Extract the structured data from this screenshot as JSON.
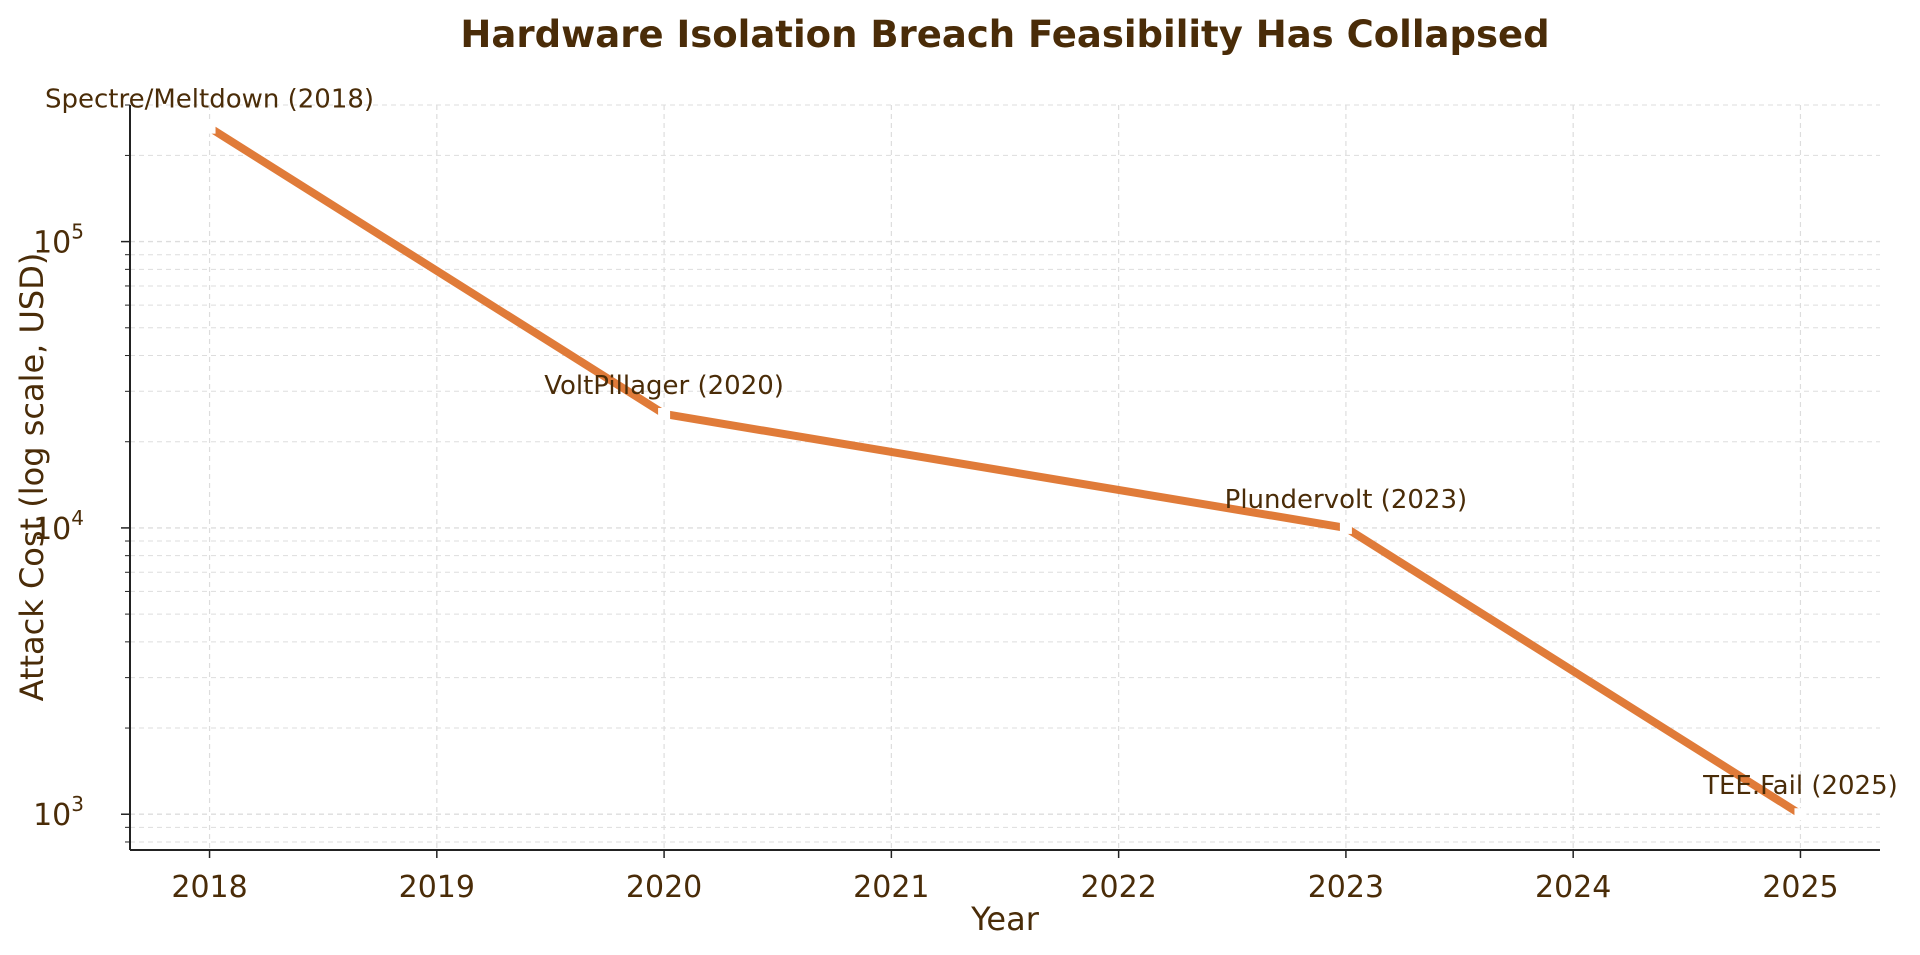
{
  "chart_data": {
    "type": "line",
    "title": "Hardware Isolation Breach Feasibility Has Collapsed",
    "xlabel": "Year",
    "ylabel": "Attack Cost (log scale, USD)",
    "x": [
      2018,
      2020,
      2023,
      2025
    ],
    "series": [
      {
        "values": [
          250000,
          25000,
          10000,
          1000
        ]
      }
    ],
    "annotations": [
      {
        "text": "Spectre/Meltdown (2018)",
        "x": 2018,
        "y": 250000
      },
      {
        "text": "VoltPillager (2020)",
        "x": 2020,
        "y": 25000
      },
      {
        "text": "Plundervolt (2023)",
        "x": 2023,
        "y": 10000
      },
      {
        "text": "TEE.Fail (2025)",
        "x": 2025,
        "y": 1000
      }
    ],
    "xticks": [
      2018,
      2019,
      2020,
      2021,
      2022,
      2023,
      2024,
      2025
    ],
    "yticks": [
      {
        "value": 1000,
        "base": "10",
        "exp": "3"
      },
      {
        "value": 10000,
        "base": "10",
        "exp": "4"
      },
      {
        "value": 100000,
        "base": "10",
        "exp": "5"
      }
    ],
    "xlim": [
      2017.65,
      2025.35
    ],
    "ylim": [
      750,
      300000
    ],
    "yscale": "log",
    "grid": true,
    "colors": {
      "line": "#E07B39",
      "text": "#4A2C08",
      "grid": "#DDDDDD",
      "axis": "#222222"
    }
  }
}
